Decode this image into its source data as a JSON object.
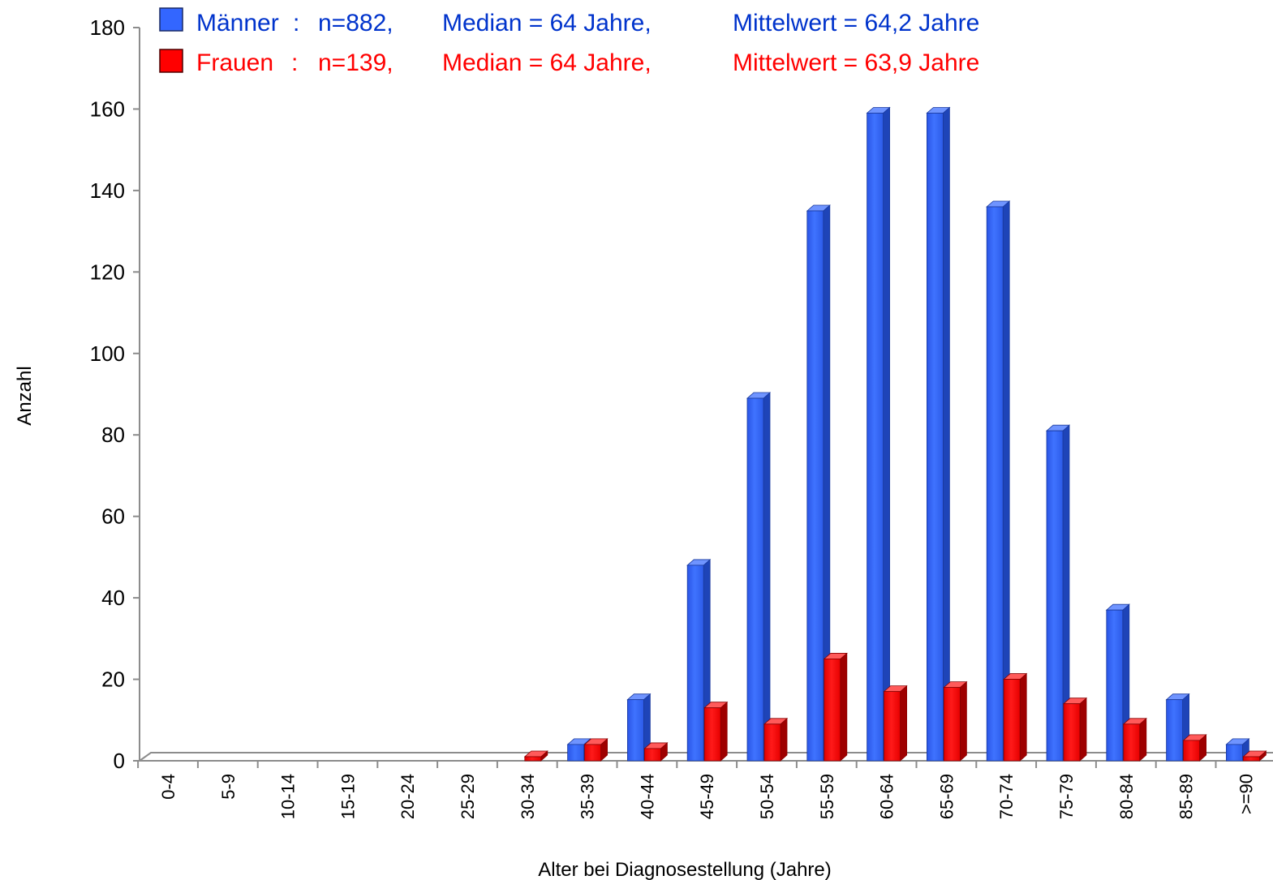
{
  "chart_data": {
    "type": "bar",
    "title": "",
    "xlabel": "Alter bei Diagnosestellung (Jahre)",
    "ylabel": "Anzahl",
    "ylim": [
      0,
      180
    ],
    "yticks": [
      0,
      20,
      40,
      60,
      80,
      100,
      120,
      140,
      160,
      180
    ],
    "categories": [
      "0-4",
      "5-9",
      "10-14",
      "15-19",
      "20-24",
      "25-29",
      "30-34",
      "35-39",
      "40-44",
      "45-49",
      "50-54",
      "55-59",
      "60-64",
      "65-69",
      "70-74",
      "75-79",
      "80-84",
      "85-89",
      ">=90"
    ],
    "series": [
      {
        "name": "Männer",
        "color": "#3366ff",
        "values": [
          0,
          0,
          0,
          0,
          0,
          0,
          0,
          4,
          15,
          48,
          89,
          135,
          159,
          159,
          136,
          81,
          37,
          15,
          4
        ],
        "legend": {
          "n": "n=882,",
          "median": "Median = 64 Jahre,",
          "mean": "Mittelwert = 64,2 Jahre"
        }
      },
      {
        "name": "Frauen",
        "color": "#ff0000",
        "values": [
          0,
          0,
          0,
          0,
          0,
          0,
          1,
          4,
          3,
          13,
          9,
          25,
          17,
          18,
          20,
          14,
          9,
          5,
          1
        ],
        "legend": {
          "n": "n=139,",
          "median": "Median = 64 Jahre,",
          "mean": "Mittelwert = 63,9 Jahre"
        }
      }
    ],
    "legend_position": "top",
    "grid": false
  }
}
